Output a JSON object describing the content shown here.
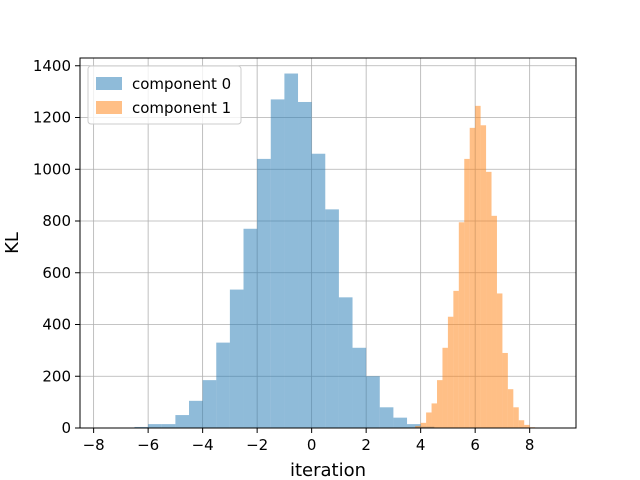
{
  "chart_data": {
    "type": "bar",
    "title": "",
    "xlabel": "iteration",
    "ylabel": "KL",
    "xlim": [
      -8.5,
      9.7
    ],
    "ylim": [
      0,
      1430
    ],
    "xticks": [
      -8,
      -6,
      -4,
      -2,
      0,
      2,
      4,
      6,
      8
    ],
    "yticks": [
      0,
      200,
      400,
      600,
      800,
      1000,
      1200,
      1400
    ],
    "grid": true,
    "legend_position": "top-left",
    "series": [
      {
        "name": "component 0",
        "color": "#1f77b4",
        "opacity": 0.5,
        "bins": [
          [
            -6.5,
            -6.0,
            4
          ],
          [
            -6.0,
            -5.5,
            15
          ],
          [
            -5.5,
            -5.0,
            15
          ],
          [
            -5.0,
            -4.5,
            50
          ],
          [
            -4.5,
            -4.0,
            105
          ],
          [
            -4.0,
            -3.5,
            185
          ],
          [
            -3.5,
            -3.0,
            330
          ],
          [
            -3.0,
            -2.5,
            535
          ],
          [
            -2.5,
            -2.0,
            770
          ],
          [
            -2.0,
            -1.5,
            1040
          ],
          [
            -1.5,
            -1.0,
            1270
          ],
          [
            -1.0,
            -0.5,
            1370
          ],
          [
            -0.5,
            0.0,
            1260
          ],
          [
            0.0,
            0.5,
            1060
          ],
          [
            0.5,
            1.0,
            845
          ],
          [
            1.0,
            1.5,
            505
          ],
          [
            1.5,
            2.0,
            310
          ],
          [
            2.0,
            2.5,
            200
          ],
          [
            2.5,
            3.0,
            80
          ],
          [
            3.0,
            3.5,
            40
          ],
          [
            3.5,
            4.0,
            15
          ],
          [
            4.0,
            4.5,
            5
          ]
        ]
      },
      {
        "name": "component 1",
        "color": "#ff7f0e",
        "opacity": 0.5,
        "bins": [
          [
            3.8,
            4.0,
            8
          ],
          [
            4.0,
            4.2,
            20
          ],
          [
            4.2,
            4.4,
            60
          ],
          [
            4.4,
            4.6,
            95
          ],
          [
            4.6,
            4.8,
            185
          ],
          [
            4.8,
            5.0,
            310
          ],
          [
            5.0,
            5.2,
            430
          ],
          [
            5.2,
            5.4,
            530
          ],
          [
            5.4,
            5.6,
            795
          ],
          [
            5.6,
            5.8,
            1040
          ],
          [
            5.8,
            6.0,
            1160
          ],
          [
            6.0,
            6.2,
            1245
          ],
          [
            6.2,
            6.4,
            1170
          ],
          [
            6.4,
            6.6,
            990
          ],
          [
            6.6,
            6.8,
            820
          ],
          [
            6.8,
            7.0,
            520
          ],
          [
            7.0,
            7.2,
            290
          ],
          [
            7.2,
            7.4,
            150
          ],
          [
            7.4,
            7.6,
            80
          ],
          [
            7.6,
            7.8,
            30
          ],
          [
            7.8,
            8.0,
            12
          ],
          [
            8.0,
            8.2,
            3
          ]
        ]
      }
    ]
  }
}
